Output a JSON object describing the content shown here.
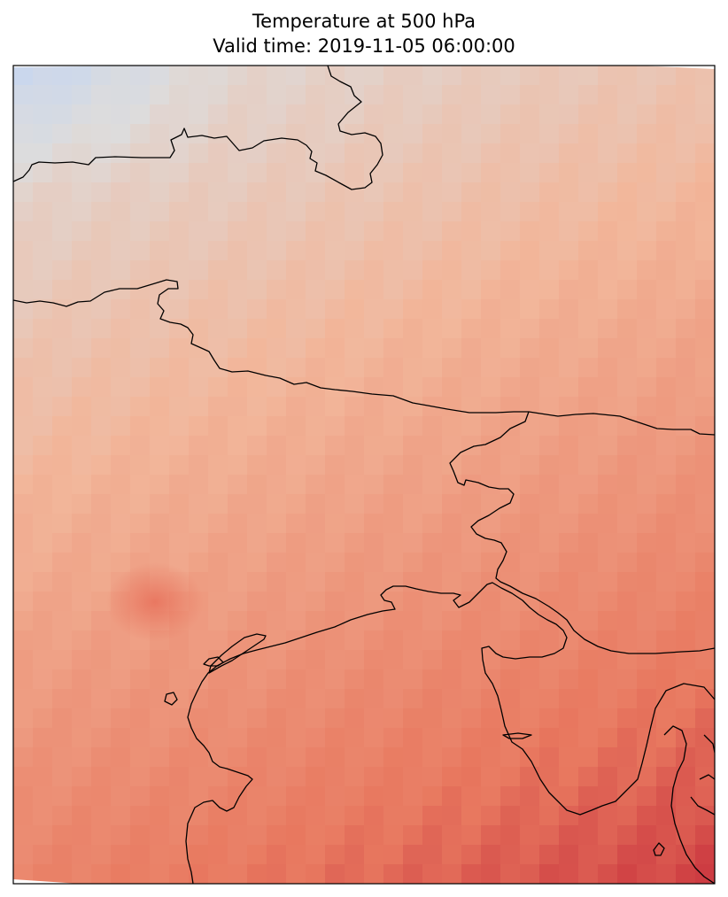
{
  "figure": {
    "title_line_1": "Temperature at 500 hPa",
    "title_line_2": "Valid time: 2019-11-05 06:00:00"
  },
  "map": {
    "colormap": "coolwarm",
    "colors": {
      "cool": "#c5d6f2",
      "neutral": "#dddcdc",
      "warm_light": "#f2b69a",
      "warm_mid": "#e8785f",
      "warm_dark": "#b40426",
      "coastline": "#000000",
      "frame": "#000000"
    },
    "features": [
      "coastlines"
    ],
    "colorbar": "none"
  }
}
